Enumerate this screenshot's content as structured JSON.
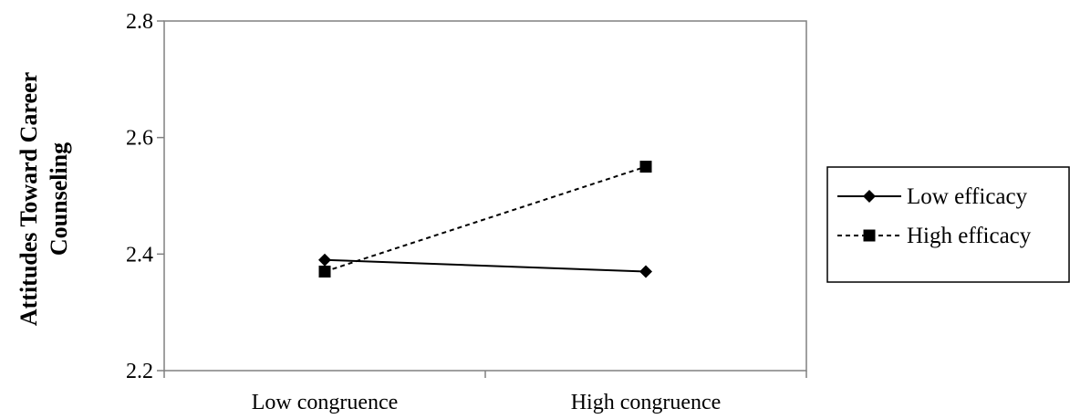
{
  "chart_data": {
    "type": "line",
    "categories": [
      "Low congruence",
      "High congruence"
    ],
    "series": [
      {
        "name": "Low efficacy",
        "values": [
          2.39,
          2.37
        ],
        "marker": "diamond",
        "line_style": "solid",
        "color": "#000000"
      },
      {
        "name": "High efficacy",
        "values": [
          2.37,
          2.55
        ],
        "marker": "square",
        "line_style": "dashed",
        "color": "#000000"
      }
    ],
    "title": "",
    "xlabel": "",
    "ylabel_lines": [
      "Attitudes Toward Career",
      "Counseling"
    ],
    "ylim": [
      2.2,
      2.8
    ],
    "yticks": [
      2.2,
      2.4,
      2.6,
      2.8
    ],
    "ytick_labels": [
      "2.2",
      "2.4",
      "2.6",
      "2.8"
    ],
    "grid": false,
    "legend_position": "right"
  }
}
